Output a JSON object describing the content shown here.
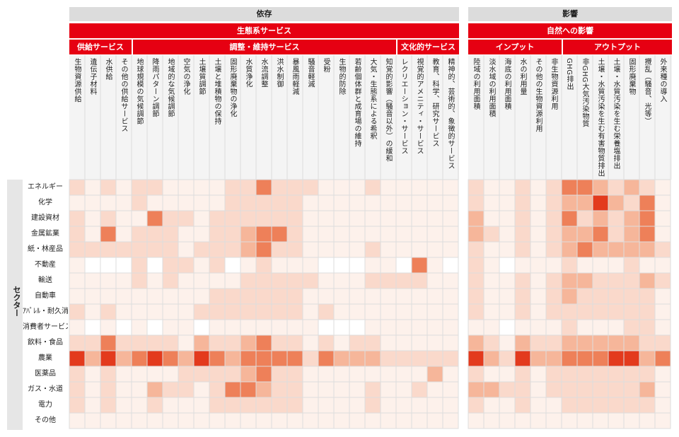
{
  "chart_data": {
    "type": "heatmap",
    "groups": {
      "dependency": "依存",
      "impact": "影響",
      "ecosystem_services": "生態系サービス",
      "impact_on_nature": "自然への影響",
      "provisioning": "供給サービス",
      "regulating": "調整・維持サービス",
      "cultural": "文化的サービス",
      "inputs": "インプット",
      "outputs": "アウトプット",
      "sector": "セクター"
    },
    "columns": [
      "生物資源供給",
      "遺伝子材料",
      "水供給",
      "その他の供給サービス",
      "地球規模の気候調節",
      "降雨パターン調節",
      "地域的な気候調節",
      "空気の浄化",
      "土壌質調節",
      "土壌と堆積物の保持",
      "固形廃棄物の浄化",
      "水質浄化",
      "水流調整",
      "洪水制御",
      "暴風雨軽減",
      "騒音軽減",
      "受粉",
      "生物的防除",
      "若齢個体群と成育場の維持",
      "大気・生態系による希釈",
      "知覚的影響（騒音以外）の緩和",
      "レクリエーション・サービス",
      "視覚的アメニティ・サービス",
      "教育、科学、研究サービス",
      "精神的、芸術的、象徴的サービス",
      "陸域の利用面積",
      "淡水域の利用面積",
      "海底の利用面積",
      "水の利用量",
      "その他の生物資源利用",
      "非生物資源利用",
      "GHG排出",
      "非GHG大気汚染物質",
      "土壌・水質汚染を生む有害物質排出",
      "土壌・水質汚染を生む栄養塩排出",
      "固形廃棄物",
      "攪乱（騒音、光等）",
      "外来種の導入"
    ],
    "rows": [
      "エネルギー",
      "化学",
      "建設資材",
      "金属鉱業",
      "紙・林産品",
      "不動産",
      "輸送",
      "自動車",
      "ｱﾊﾟﾚﾙ・耐久消費財",
      "消費者サービス",
      "飲料・食品",
      "農業",
      "医薬品",
      "ガス・水道",
      "電力",
      "その他"
    ],
    "scale": "0 = none (white), 1 = very low, 2 = low, 3 = medium, 4 = high, 5 = very high",
    "colors": [
      "#ffffff",
      "#fdf1eb",
      "#fad9cb",
      "#f6b69a",
      "#ee8059",
      "#e33a1d"
    ],
    "values": [
      [
        2,
        1,
        2,
        1,
        2,
        2,
        1,
        1,
        1,
        1,
        2,
        2,
        4,
        2,
        2,
        2,
        1,
        1,
        1,
        2,
        1,
        1,
        1,
        1,
        1,
        2,
        1,
        1,
        2,
        1,
        2,
        4,
        4,
        3,
        2,
        3,
        2,
        1
      ],
      [
        1,
        1,
        1,
        1,
        2,
        1,
        1,
        1,
        1,
        1,
        2,
        2,
        2,
        2,
        2,
        1,
        1,
        1,
        1,
        1,
        1,
        1,
        1,
        1,
        1,
        2,
        1,
        1,
        2,
        1,
        2,
        3,
        3,
        5,
        3,
        2,
        4,
        1
      ],
      [
        2,
        1,
        2,
        1,
        1,
        4,
        2,
        2,
        1,
        2,
        2,
        2,
        2,
        2,
        2,
        1,
        1,
        1,
        1,
        1,
        1,
        1,
        1,
        1,
        1,
        3,
        1,
        1,
        2,
        1,
        2,
        4,
        2,
        3,
        2,
        3,
        4,
        1
      ],
      [
        2,
        1,
        4,
        1,
        2,
        2,
        2,
        1,
        1,
        2,
        2,
        3,
        4,
        4,
        2,
        1,
        1,
        1,
        1,
        1,
        1,
        1,
        1,
        1,
        1,
        3,
        2,
        1,
        2,
        1,
        2,
        3,
        3,
        4,
        2,
        3,
        4,
        1
      ],
      [
        2,
        2,
        2,
        2,
        2,
        2,
        2,
        1,
        2,
        2,
        2,
        3,
        4,
        2,
        2,
        1,
        1,
        1,
        1,
        2,
        1,
        1,
        1,
        1,
        1,
        2,
        1,
        1,
        2,
        1,
        2,
        3,
        4,
        3,
        3,
        3,
        3,
        2
      ],
      [
        1,
        0,
        0,
        0,
        2,
        0,
        2,
        2,
        1,
        2,
        0,
        1,
        2,
        1,
        1,
        1,
        0,
        0,
        0,
        1,
        1,
        0,
        4,
        1,
        0,
        2,
        1,
        0,
        1,
        1,
        1,
        2,
        1,
        1,
        1,
        2,
        1,
        1
      ],
      [
        1,
        1,
        1,
        1,
        2,
        1,
        2,
        1,
        1,
        1,
        1,
        2,
        2,
        2,
        2,
        2,
        1,
        1,
        1,
        2,
        2,
        2,
        2,
        1,
        1,
        2,
        1,
        1,
        2,
        1,
        2,
        3,
        3,
        2,
        2,
        2,
        3,
        2
      ],
      [
        1,
        1,
        1,
        1,
        1,
        1,
        1,
        1,
        1,
        2,
        2,
        2,
        2,
        2,
        2,
        1,
        1,
        1,
        1,
        1,
        1,
        1,
        1,
        1,
        1,
        2,
        1,
        1,
        2,
        1,
        2,
        3,
        2,
        2,
        2,
        2,
        2,
        1
      ],
      [
        2,
        1,
        2,
        1,
        1,
        1,
        1,
        1,
        2,
        2,
        2,
        2,
        2,
        2,
        2,
        1,
        2,
        1,
        1,
        1,
        1,
        1,
        1,
        1,
        1,
        2,
        1,
        1,
        2,
        1,
        2,
        2,
        2,
        2,
        2,
        2,
        2,
        1
      ],
      [
        1,
        0,
        1,
        0,
        1,
        0,
        1,
        1,
        0,
        1,
        1,
        1,
        1,
        1,
        1,
        1,
        0,
        0,
        0,
        1,
        1,
        1,
        1,
        1,
        1,
        1,
        1,
        0,
        1,
        1,
        1,
        2,
        1,
        1,
        1,
        2,
        2,
        1
      ],
      [
        2,
        2,
        4,
        2,
        2,
        2,
        2,
        1,
        3,
        2,
        2,
        3,
        4,
        2,
        2,
        1,
        2,
        1,
        2,
        2,
        1,
        1,
        1,
        1,
        1,
        3,
        2,
        1,
        3,
        2,
        2,
        3,
        3,
        3,
        3,
        3,
        2,
        2
      ],
      [
        5,
        3,
        5,
        3,
        4,
        5,
        4,
        3,
        5,
        4,
        3,
        4,
        4,
        4,
        4,
        2,
        4,
        3,
        3,
        3,
        2,
        2,
        2,
        2,
        2,
        5,
        3,
        2,
        5,
        3,
        3,
        4,
        4,
        4,
        5,
        5,
        3,
        4
      ],
      [
        2,
        1,
        2,
        1,
        1,
        1,
        1,
        2,
        2,
        2,
        2,
        3,
        4,
        2,
        2,
        1,
        1,
        1,
        1,
        1,
        1,
        1,
        1,
        3,
        1,
        2,
        1,
        1,
        2,
        1,
        2,
        2,
        2,
        2,
        2,
        2,
        2,
        1
      ],
      [
        2,
        1,
        2,
        1,
        1,
        3,
        2,
        2,
        1,
        2,
        4,
        4,
        3,
        2,
        2,
        1,
        1,
        1,
        1,
        2,
        1,
        1,
        2,
        1,
        1,
        3,
        3,
        2,
        2,
        1,
        2,
        2,
        2,
        2,
        2,
        2,
        3,
        1
      ],
      [
        2,
        1,
        2,
        1,
        1,
        2,
        1,
        1,
        1,
        2,
        2,
        2,
        2,
        2,
        2,
        1,
        1,
        1,
        1,
        2,
        1,
        1,
        1,
        1,
        1,
        2,
        1,
        1,
        2,
        1,
        1,
        2,
        2,
        2,
        2,
        2,
        2,
        1
      ],
      [
        1,
        1,
        1,
        1,
        1,
        1,
        1,
        1,
        1,
        1,
        1,
        1,
        1,
        1,
        1,
        1,
        1,
        1,
        1,
        1,
        1,
        1,
        1,
        1,
        1,
        1,
        1,
        1,
        1,
        1,
        1,
        1,
        1,
        1,
        1,
        1,
        1,
        1
      ]
    ]
  }
}
